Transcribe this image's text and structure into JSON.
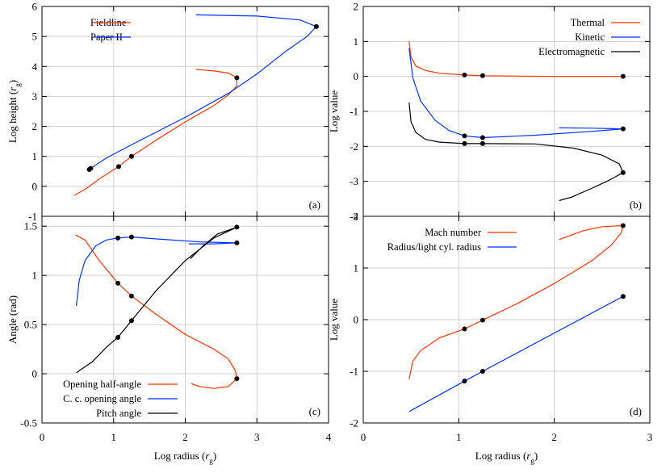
{
  "chart_data": [
    {
      "id": "a",
      "type": "line",
      "panel_tag": "(a)",
      "xlabel": "",
      "ylabel_main": "Log height (",
      "ylabel_var": "r",
      "ylabel_sub": "g",
      "ylabel_end": ")",
      "xlim": [
        0,
        4
      ],
      "ylim": [
        -1,
        6
      ],
      "xticks": [],
      "yticks": [
        -1,
        0,
        1,
        2,
        3,
        4,
        5,
        6
      ],
      "grid": true,
      "legend_position": "top-left",
      "series": [
        {
          "name": "Fieldline",
          "color": "#ff3300",
          "segments": [
            [
              [
                0.45,
                -0.3
              ],
              [
                0.6,
                -0.1
              ],
              [
                0.8,
                0.25
              ],
              [
                1.07,
                0.66
              ],
              [
                1.25,
                1.0
              ],
              [
                1.6,
                1.55
              ],
              [
                2.0,
                2.15
              ],
              [
                2.4,
                2.7
              ],
              [
                2.6,
                3.05
              ],
              [
                2.72,
                3.35
              ],
              [
                2.72,
                3.62
              ]
            ],
            [
              [
                2.72,
                3.62
              ],
              [
                2.6,
                3.78
              ],
              [
                2.4,
                3.85
              ],
              [
                2.15,
                3.9
              ]
            ]
          ],
          "markers": [
            [
              1.07,
              0.66
            ],
            [
              1.25,
              1.0
            ],
            [
              2.72,
              3.62
            ]
          ]
        },
        {
          "name": "Paper II",
          "color": "#0033ff",
          "segments": [
            [
              [
                0.68,
                0.6
              ],
              [
                0.9,
                0.95
              ],
              [
                1.3,
                1.45
              ],
              [
                2.0,
                2.3
              ],
              [
                2.6,
                3.1
              ],
              [
                3.0,
                3.75
              ],
              [
                3.4,
                4.5
              ],
              [
                3.7,
                5.0
              ],
              [
                3.83,
                5.33
              ]
            ],
            [
              [
                3.83,
                5.33
              ],
              [
                3.6,
                5.55
              ],
              [
                3.0,
                5.68
              ],
              [
                2.15,
                5.72
              ]
            ]
          ],
          "markers": [
            [
              0.66,
              0.56
            ],
            [
              0.68,
              0.6
            ],
            [
              3.83,
              5.33
            ]
          ]
        }
      ]
    },
    {
      "id": "b",
      "type": "line",
      "panel_tag": "(b)",
      "xlabel": "",
      "ylabel_main": "Log value",
      "xlim": [
        0,
        3
      ],
      "ylim": [
        -4,
        2
      ],
      "xticks": [],
      "yticks": [
        -4,
        -3,
        -2,
        -1,
        0,
        1,
        2
      ],
      "grid": true,
      "legend_position": "top-right",
      "series": [
        {
          "name": "Thermal",
          "color": "#ff3300",
          "segments": [
            [
              [
                0.48,
                1.0
              ],
              [
                0.5,
                0.55
              ],
              [
                0.55,
                0.3
              ],
              [
                0.65,
                0.17
              ],
              [
                0.8,
                0.09
              ],
              [
                1.06,
                0.04
              ],
              [
                1.25,
                0.02
              ],
              [
                2.0,
                0.0
              ],
              [
                2.72,
                0.0
              ]
            ]
          ],
          "markers": [
            [
              1.06,
              0.04
            ],
            [
              1.25,
              0.02
            ],
            [
              2.72,
              0.0
            ]
          ]
        },
        {
          "name": "Kinetic",
          "color": "#0033ff",
          "segments": [
            [
              [
                0.48,
                0.8
              ],
              [
                0.52,
                -0.05
              ],
              [
                0.6,
                -0.7
              ],
              [
                0.75,
                -1.25
              ],
              [
                0.9,
                -1.55
              ],
              [
                1.06,
                -1.7
              ],
              [
                1.25,
                -1.75
              ],
              [
                1.8,
                -1.68
              ],
              [
                2.4,
                -1.57
              ],
              [
                2.72,
                -1.5
              ]
            ],
            [
              [
                2.72,
                -1.5
              ],
              [
                2.4,
                -1.48
              ],
              [
                2.05,
                -1.47
              ]
            ]
          ],
          "markers": [
            [
              1.06,
              -1.7
            ],
            [
              1.25,
              -1.75
            ],
            [
              2.72,
              -1.5
            ]
          ]
        },
        {
          "name": "Electromagnetic",
          "color": "#000000",
          "segments": [
            [
              [
                0.48,
                -0.75
              ],
              [
                0.5,
                -1.3
              ],
              [
                0.55,
                -1.6
              ],
              [
                0.65,
                -1.8
              ],
              [
                0.8,
                -1.88
              ],
              [
                1.06,
                -1.92
              ],
              [
                1.25,
                -1.92
              ],
              [
                1.8,
                -1.93
              ],
              [
                2.2,
                -2.05
              ],
              [
                2.5,
                -2.25
              ],
              [
                2.68,
                -2.5
              ],
              [
                2.72,
                -2.75
              ]
            ],
            [
              [
                2.72,
                -2.75
              ],
              [
                2.55,
                -3.0
              ],
              [
                2.35,
                -3.25
              ],
              [
                2.18,
                -3.45
              ],
              [
                2.05,
                -3.55
              ]
            ]
          ],
          "markers": [
            [
              1.06,
              -1.92
            ],
            [
              1.25,
              -1.92
            ],
            [
              2.72,
              -2.75
            ]
          ]
        }
      ]
    },
    {
      "id": "c",
      "type": "line",
      "panel_tag": "(c)",
      "xlabel_main": "Log radius (",
      "xlabel_var": "r",
      "xlabel_sub": "g",
      "xlabel_end": ")",
      "ylabel_main": "Angle (rad)",
      "xlim": [
        0,
        4
      ],
      "ylim": [
        -0.5,
        1.6
      ],
      "xticks": [
        0,
        1,
        2,
        3,
        4
      ],
      "yticks": [
        -0.5,
        0,
        0.5,
        1,
        1.5
      ],
      "ytick_labels": [
        "-0.5",
        "0",
        "0.5",
        "1",
        "1.5"
      ],
      "grid": true,
      "legend_position": "bottom-left",
      "series": [
        {
          "name": "Opening half-angle",
          "color": "#ff3300",
          "segments": [
            [
              [
                0.47,
                1.41
              ],
              [
                0.6,
                1.36
              ],
              [
                0.8,
                1.15
              ],
              [
                1.06,
                0.92
              ],
              [
                1.25,
                0.79
              ],
              [
                1.6,
                0.6
              ],
              [
                2.0,
                0.4
              ],
              [
                2.4,
                0.25
              ],
              [
                2.6,
                0.15
              ],
              [
                2.7,
                0.03
              ],
              [
                2.72,
                -0.05
              ]
            ],
            [
              [
                2.72,
                -0.05
              ],
              [
                2.6,
                -0.13
              ],
              [
                2.4,
                -0.15
              ],
              [
                2.2,
                -0.13
              ],
              [
                2.08,
                -0.1
              ]
            ]
          ],
          "markers": [
            [
              1.06,
              0.92
            ],
            [
              1.25,
              0.79
            ],
            [
              2.72,
              -0.05
            ]
          ]
        },
        {
          "name": "C. c. opening angle",
          "color": "#0033ff",
          "segments": [
            [
              [
                0.48,
                0.69
              ],
              [
                0.52,
                0.95
              ],
              [
                0.6,
                1.15
              ],
              [
                0.75,
                1.3
              ],
              [
                0.9,
                1.36
              ],
              [
                1.06,
                1.38
              ],
              [
                1.25,
                1.39
              ],
              [
                1.6,
                1.37
              ],
              [
                2.2,
                1.34
              ],
              [
                2.72,
                1.33
              ]
            ],
            [
              [
                2.72,
                1.33
              ],
              [
                2.4,
                1.32
              ],
              [
                2.05,
                1.32
              ]
            ]
          ],
          "markers": [
            [
              1.06,
              1.38
            ],
            [
              1.25,
              1.39
            ],
            [
              2.72,
              1.33
            ]
          ]
        },
        {
          "name": "Pitch angle",
          "color": "#000000",
          "segments": [
            [
              [
                0.48,
                0.01
              ],
              [
                0.7,
                0.12
              ],
              [
                0.9,
                0.27
              ],
              [
                1.06,
                0.37
              ],
              [
                1.25,
                0.54
              ],
              [
                1.6,
                0.85
              ],
              [
                2.0,
                1.15
              ],
              [
                2.4,
                1.38
              ],
              [
                2.72,
                1.49
              ]
            ],
            [
              [
                2.72,
                1.49
              ],
              [
                2.45,
                1.42
              ],
              [
                2.25,
                1.3
              ],
              [
                2.07,
                1.17
              ]
            ]
          ],
          "markers": [
            [
              1.06,
              0.37
            ],
            [
              1.25,
              0.54
            ],
            [
              2.72,
              1.49
            ]
          ]
        }
      ]
    },
    {
      "id": "d",
      "type": "line",
      "panel_tag": "(d)",
      "xlabel_main": "Log radius (",
      "xlabel_var": "r",
      "xlabel_sub": "g",
      "xlabel_end": ")",
      "ylabel_main": "Log value",
      "xlim": [
        0,
        3
      ],
      "ylim": [
        -2,
        2
      ],
      "xticks": [
        0,
        1,
        2,
        3
      ],
      "yticks": [
        -2,
        -1,
        0,
        1,
        2
      ],
      "grid": true,
      "legend_position": "top-left",
      "series": [
        {
          "name": "Mach number",
          "color": "#ff3300",
          "segments": [
            [
              [
                0.48,
                -1.15
              ],
              [
                0.52,
                -0.8
              ],
              [
                0.6,
                -0.6
              ],
              [
                0.8,
                -0.35
              ],
              [
                1.06,
                -0.18
              ],
              [
                1.25,
                -0.01
              ],
              [
                1.6,
                0.3
              ],
              [
                2.0,
                0.7
              ],
              [
                2.4,
                1.15
              ],
              [
                2.6,
                1.45
              ],
              [
                2.7,
                1.68
              ],
              [
                2.72,
                1.82
              ]
            ],
            [
              [
                2.72,
                1.82
              ],
              [
                2.5,
                1.8
              ],
              [
                2.3,
                1.72
              ],
              [
                2.05,
                1.55
              ]
            ]
          ],
          "markers": [
            [
              1.06,
              -0.18
            ],
            [
              1.25,
              -0.01
            ],
            [
              2.72,
              1.82
            ]
          ]
        },
        {
          "name": "Radius/light cyl. radius",
          "color": "#0033ff",
          "segments": [
            [
              [
                0.48,
                -1.78
              ],
              [
                1.06,
                -1.19
              ],
              [
                1.25,
                -1.0
              ],
              [
                2.72,
                0.45
              ]
            ]
          ],
          "markers": [
            [
              1.06,
              -1.19
            ],
            [
              1.25,
              -1.0
            ],
            [
              2.72,
              0.45
            ]
          ]
        }
      ]
    }
  ]
}
